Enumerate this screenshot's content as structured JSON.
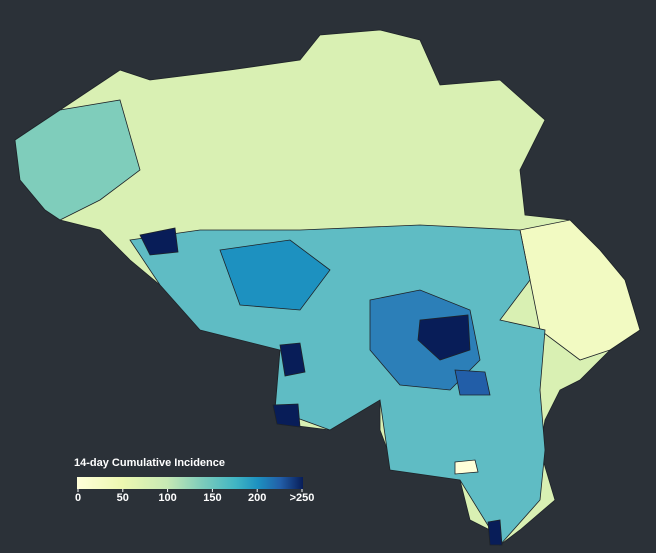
{
  "legend": {
    "title": "14-day Cumulative Incidence",
    "ticks": [
      0,
      50,
      100,
      150,
      200,
      {
        "value": 250,
        "label": ">250"
      }
    ]
  }
}
